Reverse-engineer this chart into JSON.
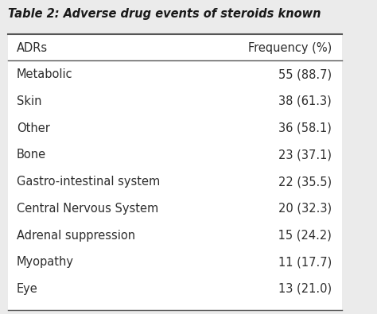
{
  "title": "Table 2: Adverse drug events of steroids known",
  "col1_header": "ADRs",
  "col2_header": "Frequency (%)",
  "rows": [
    [
      "Metabolic",
      "55 (88.7)"
    ],
    [
      "Skin",
      "38 (61.3)"
    ],
    [
      "Other",
      "36 (58.1)"
    ],
    [
      "Bone",
      "23 (37.1)"
    ],
    [
      "Gastro-intestinal system",
      "22 (35.5)"
    ],
    [
      "Central Nervous System",
      "20 (32.3)"
    ],
    [
      "Adrenal suppression",
      " 15 (24.2)"
    ],
    [
      "Myopathy",
      "11 (17.7)"
    ],
    [
      "Eye",
      "13 (21.0)"
    ]
  ],
  "bg_color": "#ebebeb",
  "table_bg": "#ffffff",
  "text_color": "#2d2d2d",
  "header_line_color": "#555555",
  "title_color": "#1a1a1a",
  "font_size": 10.5,
  "title_font_size": 10.5,
  "header_font_size": 10.5
}
